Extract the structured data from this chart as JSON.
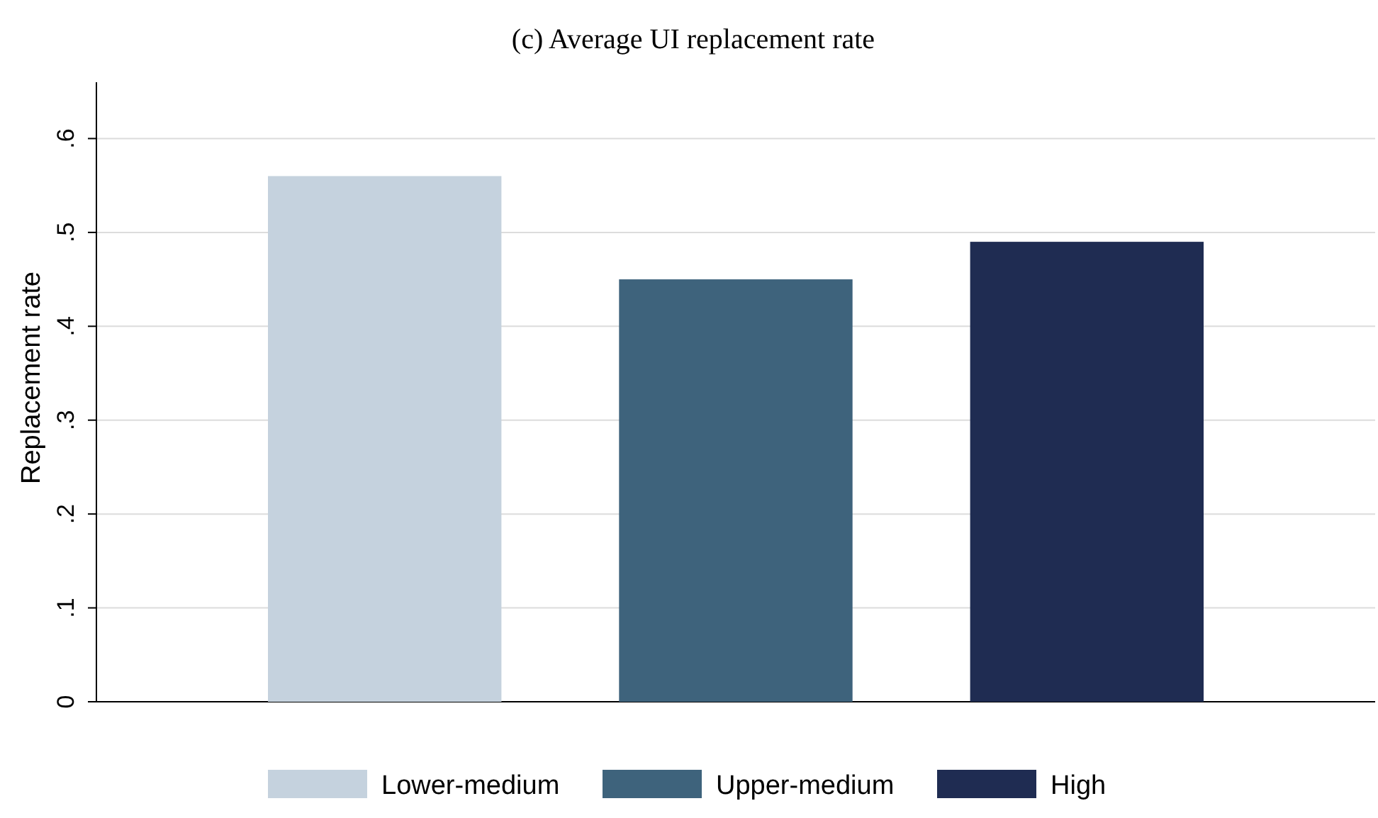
{
  "chart_data": {
    "type": "bar",
    "title": "(c) Average UI replacement rate",
    "ylabel": "Replacement rate",
    "categories": [
      null
    ],
    "series": [
      {
        "name": "Lower-medium",
        "color": "#c5d2de",
        "values": [
          0.56
        ]
      },
      {
        "name": "Upper-medium",
        "color": "#3e637c",
        "values": [
          0.45
        ]
      },
      {
        "name": "High",
        "color": "#1f2c52",
        "values": [
          0.49
        ]
      }
    ],
    "ylim": [
      0,
      0.66
    ],
    "yticks": [
      0,
      {
        "value": 0.1,
        "label": ".1"
      },
      {
        "value": 0.2,
        "label": ".2"
      },
      {
        "value": 0.3,
        "label": ".3"
      },
      {
        "value": 0.4,
        "label": ".4"
      },
      {
        "value": 0.5,
        "label": ".5"
      },
      {
        "value": 0.6,
        "label": ".6"
      }
    ],
    "grid": "y",
    "legend": "bottom"
  }
}
